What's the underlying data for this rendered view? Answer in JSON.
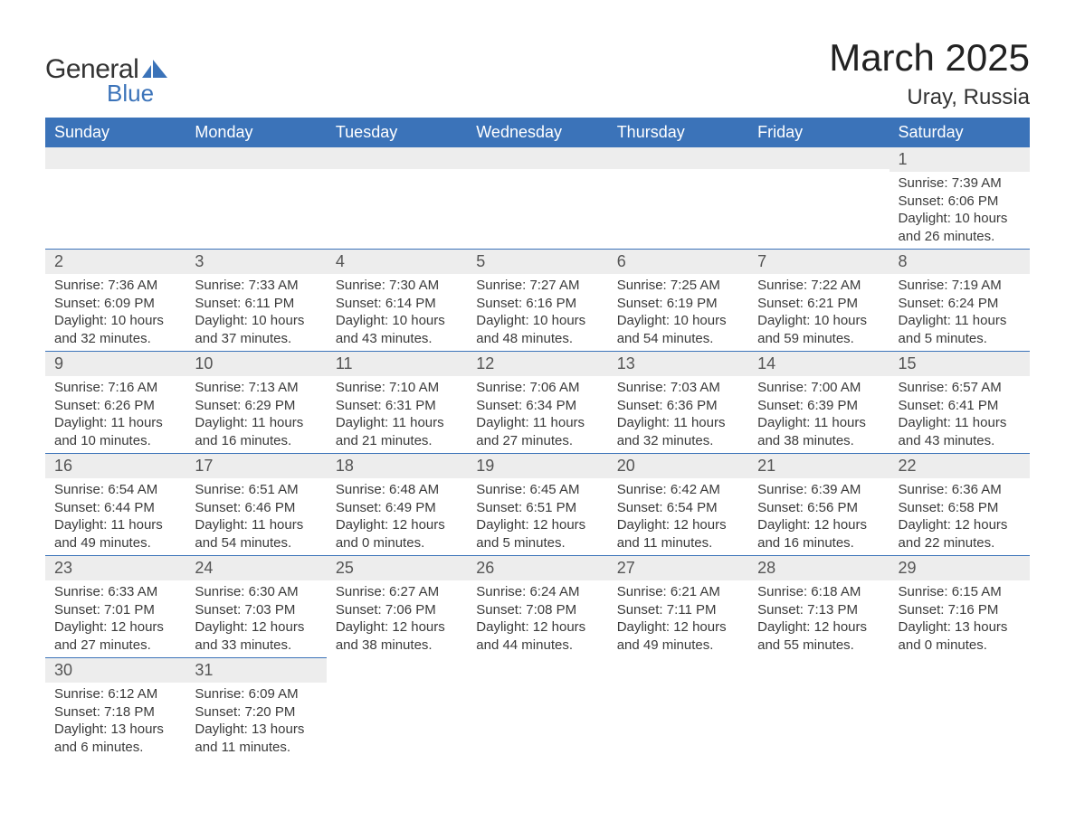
{
  "brand": {
    "word1": "General",
    "word2": "Blue",
    "mark_color": "#3b73b9"
  },
  "title": "March 2025",
  "subtitle": "Uray, Russia",
  "colors": {
    "header_bg": "#3b73b9",
    "header_text": "#ffffff",
    "daynum_bg": "#ededed",
    "row_divider": "#3b73b9",
    "body_text": "#3a3a3a",
    "page_bg": "#ffffff"
  },
  "typography": {
    "title_fontsize": 42,
    "subtitle_fontsize": 24,
    "header_fontsize": 18,
    "daynum_fontsize": 18,
    "body_fontsize": 15
  },
  "layout": {
    "columns": 7,
    "rows": 6
  },
  "columns": [
    "Sunday",
    "Monday",
    "Tuesday",
    "Wednesday",
    "Thursday",
    "Friday",
    "Saturday"
  ],
  "weeks": [
    [
      {
        "empty": true
      },
      {
        "empty": true
      },
      {
        "empty": true
      },
      {
        "empty": true
      },
      {
        "empty": true
      },
      {
        "empty": true
      },
      {
        "day": "1",
        "sunrise": "Sunrise: 7:39 AM",
        "sunset": "Sunset: 6:06 PM",
        "daylight1": "Daylight: 10 hours",
        "daylight2": "and 26 minutes."
      }
    ],
    [
      {
        "day": "2",
        "sunrise": "Sunrise: 7:36 AM",
        "sunset": "Sunset: 6:09 PM",
        "daylight1": "Daylight: 10 hours",
        "daylight2": "and 32 minutes."
      },
      {
        "day": "3",
        "sunrise": "Sunrise: 7:33 AM",
        "sunset": "Sunset: 6:11 PM",
        "daylight1": "Daylight: 10 hours",
        "daylight2": "and 37 minutes."
      },
      {
        "day": "4",
        "sunrise": "Sunrise: 7:30 AM",
        "sunset": "Sunset: 6:14 PM",
        "daylight1": "Daylight: 10 hours",
        "daylight2": "and 43 minutes."
      },
      {
        "day": "5",
        "sunrise": "Sunrise: 7:27 AM",
        "sunset": "Sunset: 6:16 PM",
        "daylight1": "Daylight: 10 hours",
        "daylight2": "and 48 minutes."
      },
      {
        "day": "6",
        "sunrise": "Sunrise: 7:25 AM",
        "sunset": "Sunset: 6:19 PM",
        "daylight1": "Daylight: 10 hours",
        "daylight2": "and 54 minutes."
      },
      {
        "day": "7",
        "sunrise": "Sunrise: 7:22 AM",
        "sunset": "Sunset: 6:21 PM",
        "daylight1": "Daylight: 10 hours",
        "daylight2": "and 59 minutes."
      },
      {
        "day": "8",
        "sunrise": "Sunrise: 7:19 AM",
        "sunset": "Sunset: 6:24 PM",
        "daylight1": "Daylight: 11 hours",
        "daylight2": "and 5 minutes."
      }
    ],
    [
      {
        "day": "9",
        "sunrise": "Sunrise: 7:16 AM",
        "sunset": "Sunset: 6:26 PM",
        "daylight1": "Daylight: 11 hours",
        "daylight2": "and 10 minutes."
      },
      {
        "day": "10",
        "sunrise": "Sunrise: 7:13 AM",
        "sunset": "Sunset: 6:29 PM",
        "daylight1": "Daylight: 11 hours",
        "daylight2": "and 16 minutes."
      },
      {
        "day": "11",
        "sunrise": "Sunrise: 7:10 AM",
        "sunset": "Sunset: 6:31 PM",
        "daylight1": "Daylight: 11 hours",
        "daylight2": "and 21 minutes."
      },
      {
        "day": "12",
        "sunrise": "Sunrise: 7:06 AM",
        "sunset": "Sunset: 6:34 PM",
        "daylight1": "Daylight: 11 hours",
        "daylight2": "and 27 minutes."
      },
      {
        "day": "13",
        "sunrise": "Sunrise: 7:03 AM",
        "sunset": "Sunset: 6:36 PM",
        "daylight1": "Daylight: 11 hours",
        "daylight2": "and 32 minutes."
      },
      {
        "day": "14",
        "sunrise": "Sunrise: 7:00 AM",
        "sunset": "Sunset: 6:39 PM",
        "daylight1": "Daylight: 11 hours",
        "daylight2": "and 38 minutes."
      },
      {
        "day": "15",
        "sunrise": "Sunrise: 6:57 AM",
        "sunset": "Sunset: 6:41 PM",
        "daylight1": "Daylight: 11 hours",
        "daylight2": "and 43 minutes."
      }
    ],
    [
      {
        "day": "16",
        "sunrise": "Sunrise: 6:54 AM",
        "sunset": "Sunset: 6:44 PM",
        "daylight1": "Daylight: 11 hours",
        "daylight2": "and 49 minutes."
      },
      {
        "day": "17",
        "sunrise": "Sunrise: 6:51 AM",
        "sunset": "Sunset: 6:46 PM",
        "daylight1": "Daylight: 11 hours",
        "daylight2": "and 54 minutes."
      },
      {
        "day": "18",
        "sunrise": "Sunrise: 6:48 AM",
        "sunset": "Sunset: 6:49 PM",
        "daylight1": "Daylight: 12 hours",
        "daylight2": "and 0 minutes."
      },
      {
        "day": "19",
        "sunrise": "Sunrise: 6:45 AM",
        "sunset": "Sunset: 6:51 PM",
        "daylight1": "Daylight: 12 hours",
        "daylight2": "and 5 minutes."
      },
      {
        "day": "20",
        "sunrise": "Sunrise: 6:42 AM",
        "sunset": "Sunset: 6:54 PM",
        "daylight1": "Daylight: 12 hours",
        "daylight2": "and 11 minutes."
      },
      {
        "day": "21",
        "sunrise": "Sunrise: 6:39 AM",
        "sunset": "Sunset: 6:56 PM",
        "daylight1": "Daylight: 12 hours",
        "daylight2": "and 16 minutes."
      },
      {
        "day": "22",
        "sunrise": "Sunrise: 6:36 AM",
        "sunset": "Sunset: 6:58 PM",
        "daylight1": "Daylight: 12 hours",
        "daylight2": "and 22 minutes."
      }
    ],
    [
      {
        "day": "23",
        "sunrise": "Sunrise: 6:33 AM",
        "sunset": "Sunset: 7:01 PM",
        "daylight1": "Daylight: 12 hours",
        "daylight2": "and 27 minutes."
      },
      {
        "day": "24",
        "sunrise": "Sunrise: 6:30 AM",
        "sunset": "Sunset: 7:03 PM",
        "daylight1": "Daylight: 12 hours",
        "daylight2": "and 33 minutes."
      },
      {
        "day": "25",
        "sunrise": "Sunrise: 6:27 AM",
        "sunset": "Sunset: 7:06 PM",
        "daylight1": "Daylight: 12 hours",
        "daylight2": "and 38 minutes."
      },
      {
        "day": "26",
        "sunrise": "Sunrise: 6:24 AM",
        "sunset": "Sunset: 7:08 PM",
        "daylight1": "Daylight: 12 hours",
        "daylight2": "and 44 minutes."
      },
      {
        "day": "27",
        "sunrise": "Sunrise: 6:21 AM",
        "sunset": "Sunset: 7:11 PM",
        "daylight1": "Daylight: 12 hours",
        "daylight2": "and 49 minutes."
      },
      {
        "day": "28",
        "sunrise": "Sunrise: 6:18 AM",
        "sunset": "Sunset: 7:13 PM",
        "daylight1": "Daylight: 12 hours",
        "daylight2": "and 55 minutes."
      },
      {
        "day": "29",
        "sunrise": "Sunrise: 6:15 AM",
        "sunset": "Sunset: 7:16 PM",
        "daylight1": "Daylight: 13 hours",
        "daylight2": "and 0 minutes."
      }
    ],
    [
      {
        "day": "30",
        "sunrise": "Sunrise: 6:12 AM",
        "sunset": "Sunset: 7:18 PM",
        "daylight1": "Daylight: 13 hours",
        "daylight2": "and 6 minutes."
      },
      {
        "day": "31",
        "sunrise": "Sunrise: 6:09 AM",
        "sunset": "Sunset: 7:20 PM",
        "daylight1": "Daylight: 13 hours",
        "daylight2": "and 11 minutes."
      },
      {
        "empty": true,
        "nobar": true
      },
      {
        "empty": true,
        "nobar": true
      },
      {
        "empty": true,
        "nobar": true
      },
      {
        "empty": true,
        "nobar": true
      },
      {
        "empty": true,
        "nobar": true
      }
    ]
  ]
}
